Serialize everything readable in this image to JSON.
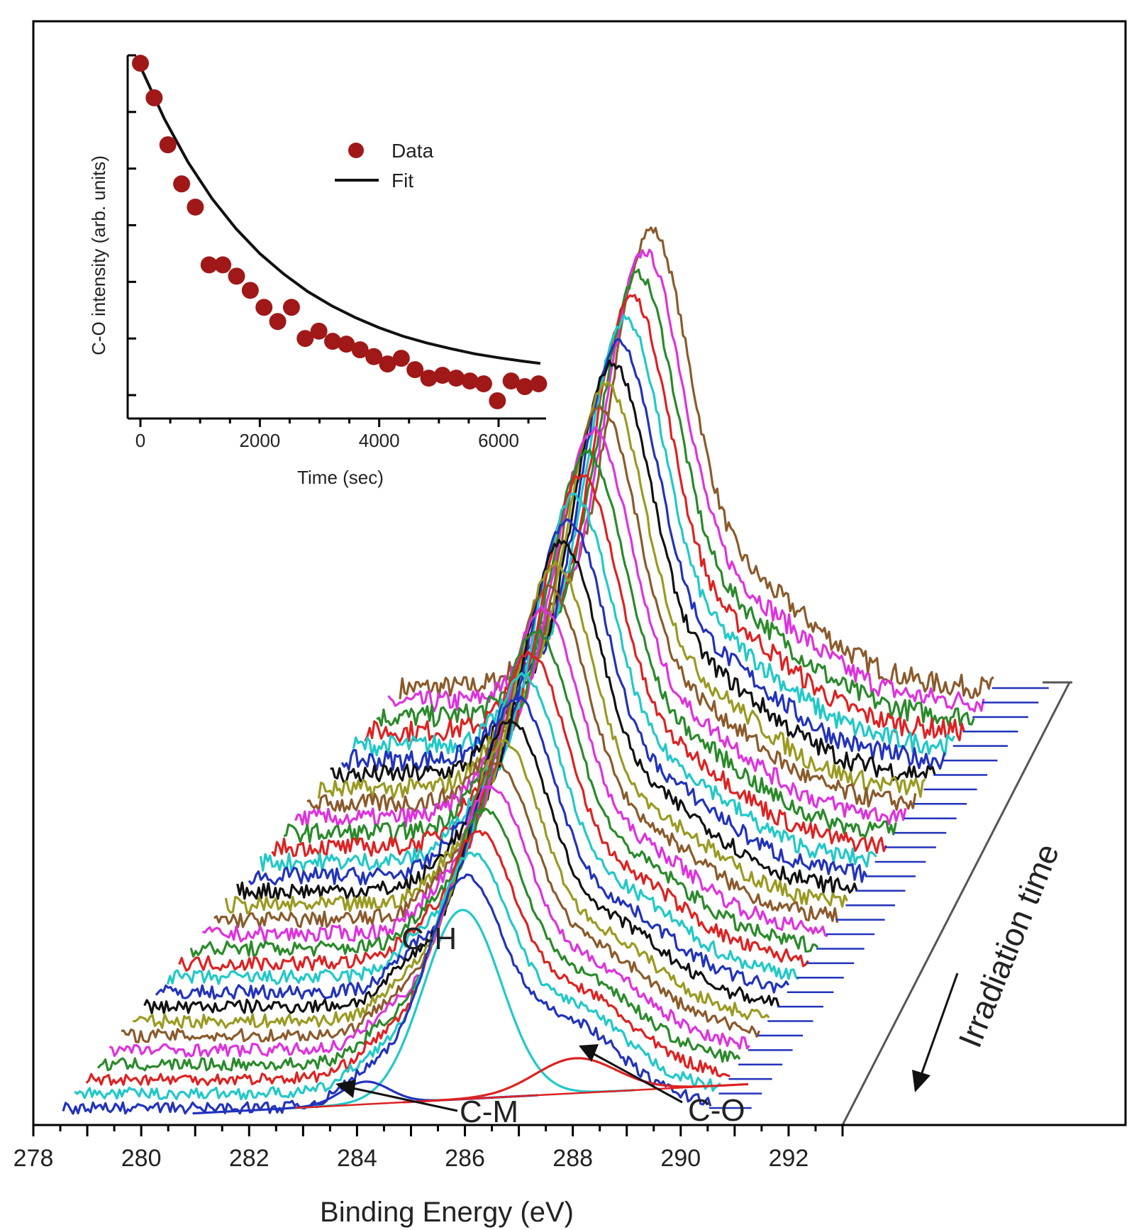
{
  "chart_data": [
    {
      "type": "line",
      "subtype": "waterfall",
      "xlabel": "Binding Energy (eV)",
      "ylabel": "",
      "x_ticks": [
        278,
        280,
        282,
        284,
        286,
        288,
        290,
        292
      ],
      "xlim": [
        278,
        293
      ],
      "depth_axis_label": "Irradiation time",
      "spectra_count": 30,
      "series_colors": [
        "#2233bb",
        "#22c8c8",
        "#dd2222",
        "#2a8a2a",
        "#dd33dd",
        "#8b5a2b",
        "#9a9a22",
        "#111111"
      ],
      "annotations": [
        {
          "text": "C-H",
          "x": 285.8
        },
        {
          "text": "C-M",
          "x": 283.6
        },
        {
          "text": "C-O",
          "x": 287.5
        }
      ],
      "components": [
        {
          "name": "C-H",
          "center": 285.4,
          "height": 1.0,
          "color": "#22c8c8"
        },
        {
          "name": "C-M",
          "center": 283.6,
          "height": 0.11,
          "color": "#2233bb"
        },
        {
          "name": "C-O",
          "center": 287.5,
          "height": 0.17,
          "color": "#dd2222"
        }
      ]
    },
    {
      "type": "scatter",
      "role": "inset",
      "xlabel": "Time (sec)",
      "ylabel": "C-O intensity (arb. units)",
      "x_ticks": [
        0,
        2000,
        4000,
        6000
      ],
      "xlim": [
        -200,
        6900
      ],
      "ylim": [
        0,
        6.2
      ],
      "legend": [
        "Data",
        "Fit"
      ],
      "legend_position": "top-center",
      "series": [
        {
          "name": "Data",
          "color": "#a01818",
          "x": [
            0,
            230,
            460,
            690,
            920,
            1150,
            1380,
            1610,
            1840,
            2070,
            2300,
            2530,
            2760,
            2990,
            3220,
            3450,
            3680,
            3910,
            4140,
            4370,
            4600,
            4830,
            5060,
            5290,
            5520,
            5750,
            5980,
            6210,
            6440,
            6670
          ],
          "y": [
            5.86,
            5.25,
            4.42,
            3.73,
            3.32,
            2.3,
            2.3,
            2.1,
            1.85,
            1.55,
            1.3,
            1.55,
            1.0,
            1.13,
            0.95,
            0.9,
            0.8,
            0.68,
            0.55,
            0.65,
            0.45,
            0.3,
            0.35,
            0.3,
            0.25,
            0.2,
            -0.1,
            0.25,
            0.15,
            0.2
          ]
        },
        {
          "name": "Fit",
          "color": "#111111",
          "model": "exponential",
          "x": [
            0,
            400,
            800,
            1200,
            1600,
            2000,
            2400,
            2800,
            3200,
            3600,
            4000,
            4400,
            4800,
            5200,
            5600,
            6000,
            6400,
            6700
          ],
          "y": [
            5.8,
            4.88,
            4.11,
            3.47,
            2.94,
            2.5,
            2.14,
            1.83,
            1.58,
            1.37,
            1.19,
            1.04,
            0.92,
            0.82,
            0.73,
            0.66,
            0.6,
            0.56
          ]
        }
      ]
    }
  ]
}
